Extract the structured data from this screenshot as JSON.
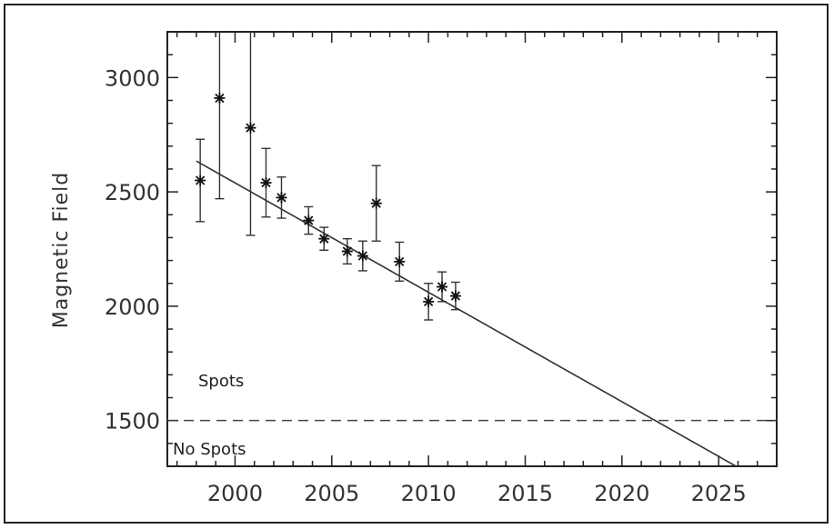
{
  "chart_data": {
    "type": "scatter",
    "title": "",
    "xlabel": "",
    "ylabel": "Magnetic Field",
    "xlim": [
      1996.5,
      2028.0
    ],
    "ylim": [
      1300,
      3200
    ],
    "xticks": [
      2000,
      2005,
      2010,
      2015,
      2020,
      2025
    ],
    "yticks": [
      1500,
      2000,
      2500,
      3000
    ],
    "xtick_labels": [
      "2000",
      "2005",
      "2010",
      "2015",
      "2020",
      "2025"
    ],
    "ytick_labels": [
      "1500",
      "2000",
      "2500",
      "3000"
    ],
    "grid": false,
    "series": [
      {
        "marker": "asterisk",
        "points": [
          {
            "x": 1998.2,
            "y": 2550,
            "err": 180
          },
          {
            "x": 1999.2,
            "y": 2910,
            "err": 440
          },
          {
            "x": 2000.8,
            "y": 2780,
            "err": 470
          },
          {
            "x": 2001.6,
            "y": 2540,
            "err": 150
          },
          {
            "x": 2002.4,
            "y": 2475,
            "err": 90
          },
          {
            "x": 2003.8,
            "y": 2375,
            "err": 60
          },
          {
            "x": 2004.6,
            "y": 2295,
            "err": 50
          },
          {
            "x": 2005.8,
            "y": 2240,
            "err": 55
          },
          {
            "x": 2006.6,
            "y": 2220,
            "err": 65
          },
          {
            "x": 2007.3,
            "y": 2450,
            "err": 165
          },
          {
            "x": 2008.5,
            "y": 2195,
            "err": 85
          },
          {
            "x": 2010.0,
            "y": 2020,
            "err": 80
          },
          {
            "x": 2010.7,
            "y": 2085,
            "err": 65
          },
          {
            "x": 2011.4,
            "y": 2045,
            "err": 60
          }
        ]
      }
    ],
    "fit_line": {
      "x": [
        1998.0,
        2025.9
      ],
      "y": [
        2635,
        1300
      ]
    },
    "threshold": {
      "y": 1500,
      "style": "dashed"
    },
    "annotations": {
      "above": "Spots",
      "below": "No Spots"
    }
  }
}
